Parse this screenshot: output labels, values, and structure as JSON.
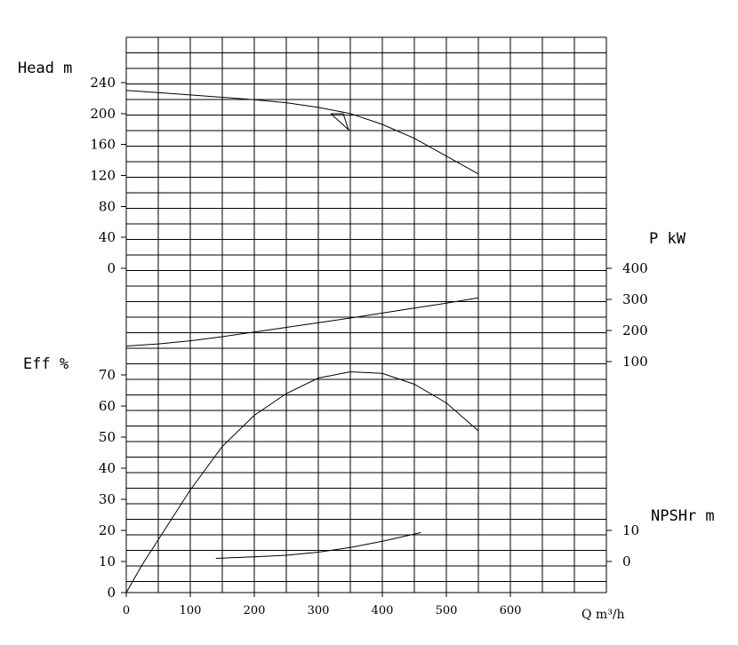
{
  "chart_data": {
    "type": "line",
    "title": "",
    "x_axis": {
      "label": "Q m³/h",
      "ticks": [
        0,
        100,
        200,
        300,
        400,
        500,
        600
      ],
      "range": [
        0,
        750
      ]
    },
    "panels": {
      "head": {
        "label": "Head m",
        "ticks": [
          "240",
          "200",
          "160",
          "120",
          "80",
          "40",
          "0"
        ],
        "range": [
          0,
          240
        ],
        "series": [
          {
            "name": "Head",
            "x": [
              0,
              50,
              100,
              150,
              200,
              250,
              300,
              350,
              400,
              450,
              500,
              550
            ],
            "y": [
              230,
              227,
              224,
              221,
              218,
              214,
              208,
              200,
              186,
              168,
              145,
              122
            ]
          }
        ]
      },
      "power": {
        "label": "P kW",
        "ticks": [
          "400",
          "300",
          "200",
          "100"
        ],
        "range": [
          100,
          400
        ],
        "series": [
          {
            "name": "Power",
            "x": [
              0,
              50,
              100,
              150,
              200,
              250,
              300,
              350,
              400,
              450,
              500,
              550
            ],
            "y": [
              150,
              157,
              167,
              180,
              195,
              210,
              225,
              240,
              256,
              272,
              288,
              305
            ]
          }
        ]
      },
      "efficiency": {
        "label": "Eff %",
        "ticks": [
          "70",
          "60",
          "50",
          "40",
          "30",
          "20",
          "10",
          "0"
        ],
        "range": [
          0,
          70
        ],
        "series": [
          {
            "name": "Eff",
            "x": [
              0,
              25,
              50,
              100,
              150,
              200,
              250,
              300,
              350,
              400,
              450,
              500,
              550
            ],
            "y": [
              0,
              9,
              17,
              33,
              47,
              57,
              64,
              69,
              71,
              70.5,
              67,
              61,
              52
            ]
          }
        ]
      },
      "npsh": {
        "label": "NPSHr m",
        "ticks": [
          "10",
          "0"
        ],
        "range": [
          0,
          10
        ],
        "series": [
          {
            "name": "NPSHr",
            "x": [
              140,
              200,
              250,
              300,
              350,
              400,
              460
            ],
            "y": [
              1.0,
              1.5,
              2.0,
              3.0,
              4.5,
              6.5,
              9.3
            ]
          }
        ]
      }
    }
  }
}
